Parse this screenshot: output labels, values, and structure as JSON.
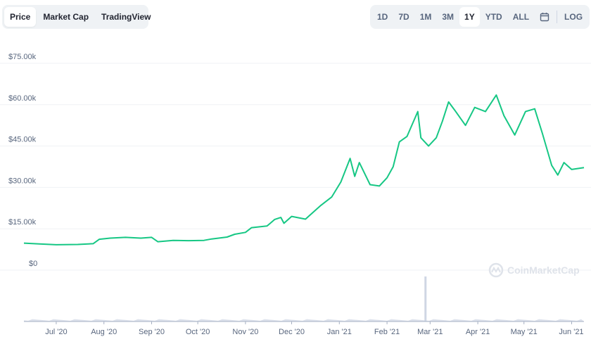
{
  "tabs": [
    {
      "label": "Price",
      "active": true
    },
    {
      "label": "Market Cap",
      "active": false
    },
    {
      "label": "TradingView",
      "active": false
    }
  ],
  "ranges": [
    {
      "label": "1D",
      "active": false
    },
    {
      "label": "7D",
      "active": false
    },
    {
      "label": "1M",
      "active": false
    },
    {
      "label": "3M",
      "active": false
    },
    {
      "label": "1Y",
      "active": true
    },
    {
      "label": "YTD",
      "active": false
    },
    {
      "label": "ALL",
      "active": false
    }
  ],
  "calendar_icon": "calendar-icon",
  "log_label": "LOG",
  "watermark": "CoinMarketCap",
  "colors": {
    "line": "#16c784",
    "grid": "#eff2f5",
    "volume": "#cfd6e4",
    "text": "#58667e"
  },
  "chart_data": {
    "type": "line",
    "ylim": [
      0,
      80000
    ],
    "y_ticks": [
      {
        "value": 0,
        "label": "$0"
      },
      {
        "value": 15000,
        "label": "$15.00k"
      },
      {
        "value": 30000,
        "label": "$30.00k"
      },
      {
        "value": 45000,
        "label": "$45.00k"
      },
      {
        "value": 60000,
        "label": "$60.00k"
      },
      {
        "value": 75000,
        "label": "$75.00k"
      }
    ],
    "x_ticks": [
      "Jul '20",
      "Aug '20",
      "Sep '20",
      "Oct '20",
      "Nov '20",
      "Dec '20",
      "Jan '21",
      "Feb '21",
      "Mar '21",
      "Apr '21",
      "May '21",
      "Jun '21"
    ],
    "x_range": [
      "2020-06-10",
      "2021-06-09"
    ],
    "series": [
      {
        "values": [
          [
            "2020-06-10",
            9800
          ],
          [
            "2020-06-20",
            9500
          ],
          [
            "2020-07-01",
            9200
          ],
          [
            "2020-07-15",
            9300
          ],
          [
            "2020-07-25",
            9600
          ],
          [
            "2020-07-29",
            11200
          ],
          [
            "2020-08-05",
            11600
          ],
          [
            "2020-08-15",
            11900
          ],
          [
            "2020-08-25",
            11600
          ],
          [
            "2020-09-01",
            11900
          ],
          [
            "2020-09-05",
            10300
          ],
          [
            "2020-09-15",
            10800
          ],
          [
            "2020-09-25",
            10700
          ],
          [
            "2020-10-05",
            10800
          ],
          [
            "2020-10-10",
            11300
          ],
          [
            "2020-10-20",
            12000
          ],
          [
            "2020-10-25",
            13000
          ],
          [
            "2020-11-01",
            13700
          ],
          [
            "2020-11-05",
            15400
          ],
          [
            "2020-11-15",
            16000
          ],
          [
            "2020-11-20",
            18400
          ],
          [
            "2020-11-24",
            19100
          ],
          [
            "2020-11-26",
            17000
          ],
          [
            "2020-12-01",
            19500
          ],
          [
            "2020-12-10",
            18500
          ],
          [
            "2020-12-16",
            21500
          ],
          [
            "2020-12-20",
            23500
          ],
          [
            "2020-12-27",
            26500
          ],
          [
            "2021-01-02",
            32000
          ],
          [
            "2021-01-08",
            40500
          ],
          [
            "2021-01-11",
            34000
          ],
          [
            "2021-01-14",
            39000
          ],
          [
            "2021-01-21",
            31000
          ],
          [
            "2021-01-27",
            30500
          ],
          [
            "2021-02-01",
            33500
          ],
          [
            "2021-02-05",
            37500
          ],
          [
            "2021-02-09",
            46500
          ],
          [
            "2021-02-14",
            48500
          ],
          [
            "2021-02-21",
            57500
          ],
          [
            "2021-02-23",
            48000
          ],
          [
            "2021-02-28",
            45000
          ],
          [
            "2021-03-05",
            48000
          ],
          [
            "2021-03-09",
            54000
          ],
          [
            "2021-03-13",
            61000
          ],
          [
            "2021-03-17",
            58000
          ],
          [
            "2021-03-24",
            52500
          ],
          [
            "2021-03-30",
            59000
          ],
          [
            "2021-04-06",
            57500
          ],
          [
            "2021-04-13",
            63500
          ],
          [
            "2021-04-18",
            56000
          ],
          [
            "2021-04-25",
            49000
          ],
          [
            "2021-05-02",
            57500
          ],
          [
            "2021-05-08",
            58500
          ],
          [
            "2021-05-13",
            49500
          ],
          [
            "2021-05-19",
            38000
          ],
          [
            "2021-05-23",
            34500
          ],
          [
            "2021-05-27",
            39000
          ],
          [
            "2021-06-01",
            36500
          ],
          [
            "2021-06-09",
            37200
          ]
        ]
      }
    ],
    "volume": {
      "baseline": "low",
      "spike": {
        "date": "2021-02-26",
        "relative_height": 1.0
      }
    }
  }
}
